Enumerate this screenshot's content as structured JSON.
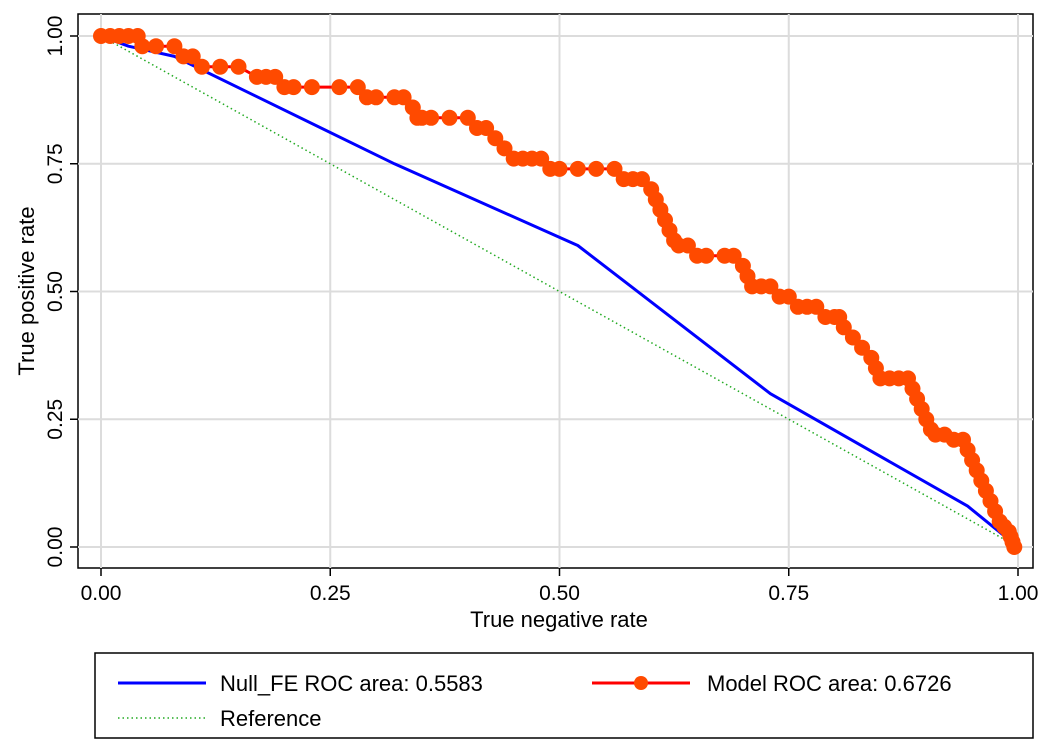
{
  "chart_data": {
    "type": "line",
    "xlabel": "True negative rate",
    "ylabel": "True positive rate",
    "xlim": [
      0,
      1
    ],
    "ylim": [
      0,
      1
    ],
    "xticks": [
      "0.00",
      "0.25",
      "0.50",
      "0.75",
      "1.00"
    ],
    "yticks": [
      "0.00",
      "0.25",
      "0.50",
      "0.75",
      "1.00"
    ],
    "grid": true,
    "legend_position": "bottom",
    "series": [
      {
        "name": "Null_FE ROC area: 0.5583",
        "color": "#0000ff",
        "marker": "none",
        "x": [
          0.0,
          0.03,
          0.08,
          0.32,
          0.52,
          0.73,
          0.945,
          1.0
        ],
        "y": [
          1.0,
          0.98,
          0.96,
          0.75,
          0.59,
          0.3,
          0.08,
          0.0
        ]
      },
      {
        "name": "Model ROC area: 0.6726",
        "color": "#ff4a00",
        "marker": "circle",
        "x": [
          0.0,
          0.01,
          0.02,
          0.03,
          0.04,
          0.045,
          0.06,
          0.08,
          0.09,
          0.1,
          0.11,
          0.13,
          0.15,
          0.17,
          0.18,
          0.19,
          0.2,
          0.21,
          0.23,
          0.26,
          0.28,
          0.29,
          0.3,
          0.32,
          0.33,
          0.34,
          0.345,
          0.35,
          0.36,
          0.38,
          0.4,
          0.41,
          0.42,
          0.43,
          0.44,
          0.45,
          0.46,
          0.47,
          0.48,
          0.49,
          0.5,
          0.52,
          0.54,
          0.56,
          0.57,
          0.58,
          0.59,
          0.6,
          0.605,
          0.61,
          0.615,
          0.62,
          0.625,
          0.63,
          0.64,
          0.65,
          0.66,
          0.68,
          0.69,
          0.7,
          0.705,
          0.71,
          0.72,
          0.73,
          0.74,
          0.75,
          0.76,
          0.77,
          0.78,
          0.79,
          0.8,
          0.805,
          0.81,
          0.82,
          0.83,
          0.84,
          0.845,
          0.85,
          0.86,
          0.87,
          0.88,
          0.885,
          0.89,
          0.895,
          0.9,
          0.905,
          0.91,
          0.92,
          0.93,
          0.94,
          0.945,
          0.95,
          0.955,
          0.96,
          0.965,
          0.97,
          0.975,
          0.98,
          0.985,
          0.99,
          0.992,
          0.994,
          0.996
        ],
        "y": [
          1.0,
          1.0,
          1.0,
          1.0,
          1.0,
          0.98,
          0.98,
          0.98,
          0.96,
          0.96,
          0.94,
          0.94,
          0.94,
          0.92,
          0.92,
          0.92,
          0.9,
          0.9,
          0.9,
          0.9,
          0.9,
          0.88,
          0.88,
          0.88,
          0.88,
          0.86,
          0.84,
          0.84,
          0.84,
          0.84,
          0.84,
          0.82,
          0.82,
          0.8,
          0.78,
          0.76,
          0.76,
          0.76,
          0.76,
          0.74,
          0.74,
          0.74,
          0.74,
          0.74,
          0.72,
          0.72,
          0.72,
          0.7,
          0.68,
          0.66,
          0.64,
          0.62,
          0.6,
          0.59,
          0.59,
          0.57,
          0.57,
          0.57,
          0.57,
          0.55,
          0.53,
          0.51,
          0.51,
          0.51,
          0.49,
          0.49,
          0.47,
          0.47,
          0.47,
          0.45,
          0.45,
          0.45,
          0.43,
          0.41,
          0.39,
          0.37,
          0.35,
          0.33,
          0.33,
          0.33,
          0.33,
          0.31,
          0.29,
          0.27,
          0.25,
          0.23,
          0.22,
          0.22,
          0.21,
          0.21,
          0.19,
          0.17,
          0.15,
          0.13,
          0.11,
          0.09,
          0.07,
          0.05,
          0.04,
          0.03,
          0.02,
          0.01,
          0.0
        ]
      },
      {
        "name": "Reference",
        "color": "#22aa22",
        "marker": "none",
        "dash": "dotted",
        "x": [
          0,
          1
        ],
        "y": [
          1,
          0
        ]
      }
    ]
  }
}
